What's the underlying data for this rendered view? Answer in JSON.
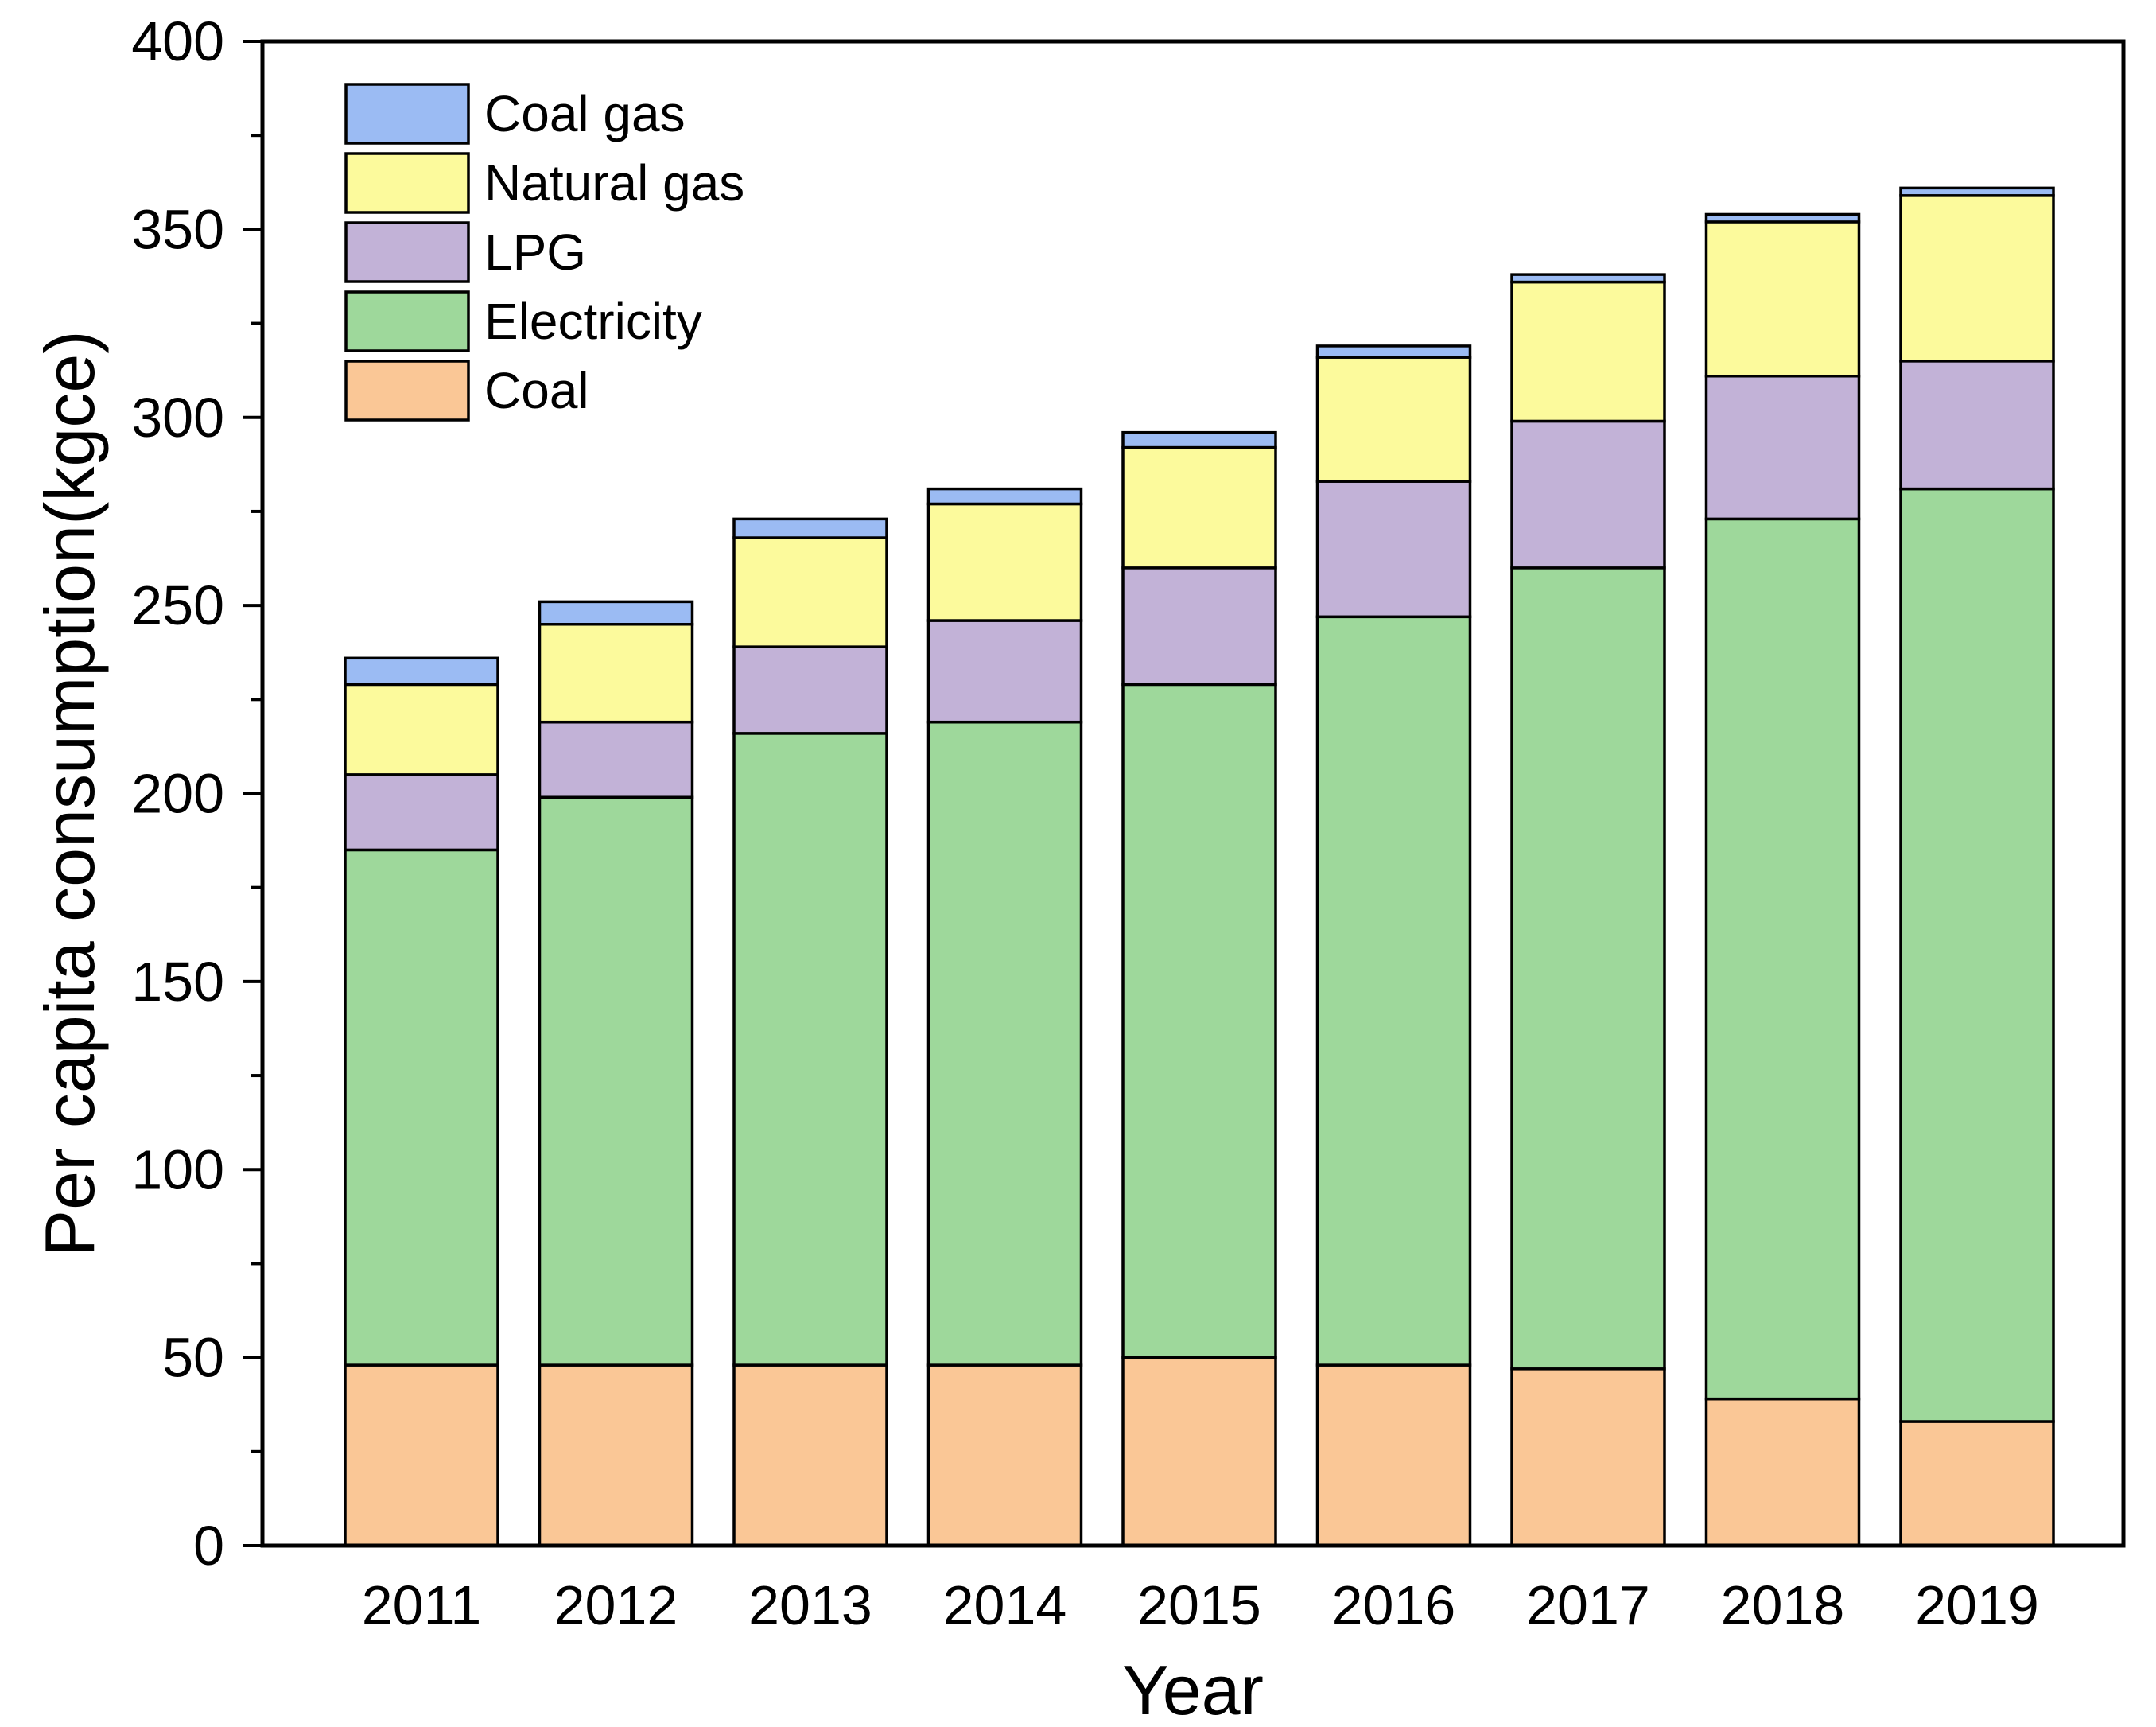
{
  "chart_data": {
    "type": "bar",
    "stacked": true,
    "title": "",
    "xlabel": "Year",
    "ylabel": "Per capita consumption(kgce)",
    "ylim": [
      0,
      400
    ],
    "yticks": [
      0,
      50,
      100,
      150,
      200,
      250,
      300,
      350,
      400
    ],
    "categories": [
      "2011",
      "2012",
      "2013",
      "2014",
      "2015",
      "2016",
      "2017",
      "2018",
      "2019"
    ],
    "series": [
      {
        "name": "Coal",
        "color": "#fac796",
        "values": [
          48,
          48,
          48,
          48,
          50,
          48,
          47,
          39,
          33
        ]
      },
      {
        "name": "Electricity",
        "color": "#9ed89b",
        "values": [
          137,
          151,
          168,
          171,
          179,
          199,
          213,
          234,
          248
        ]
      },
      {
        "name": "LPG",
        "color": "#c2b2d7",
        "values": [
          20,
          20,
          23,
          27,
          31,
          36,
          39,
          38,
          34
        ]
      },
      {
        "name": "Natural gas",
        "color": "#fcfa9c",
        "values": [
          24,
          26,
          29,
          31,
          32,
          33,
          37,
          41,
          44
        ]
      },
      {
        "name": "Coal gas",
        "color": "#9bbbf3",
        "values": [
          7,
          6,
          5,
          4,
          4,
          3,
          2,
          2,
          2
        ]
      }
    ],
    "legend": {
      "position": "top-left",
      "order": [
        "Coal gas",
        "Natural gas",
        "LPG",
        "Electricity",
        "Coal"
      ]
    },
    "grid": false
  }
}
